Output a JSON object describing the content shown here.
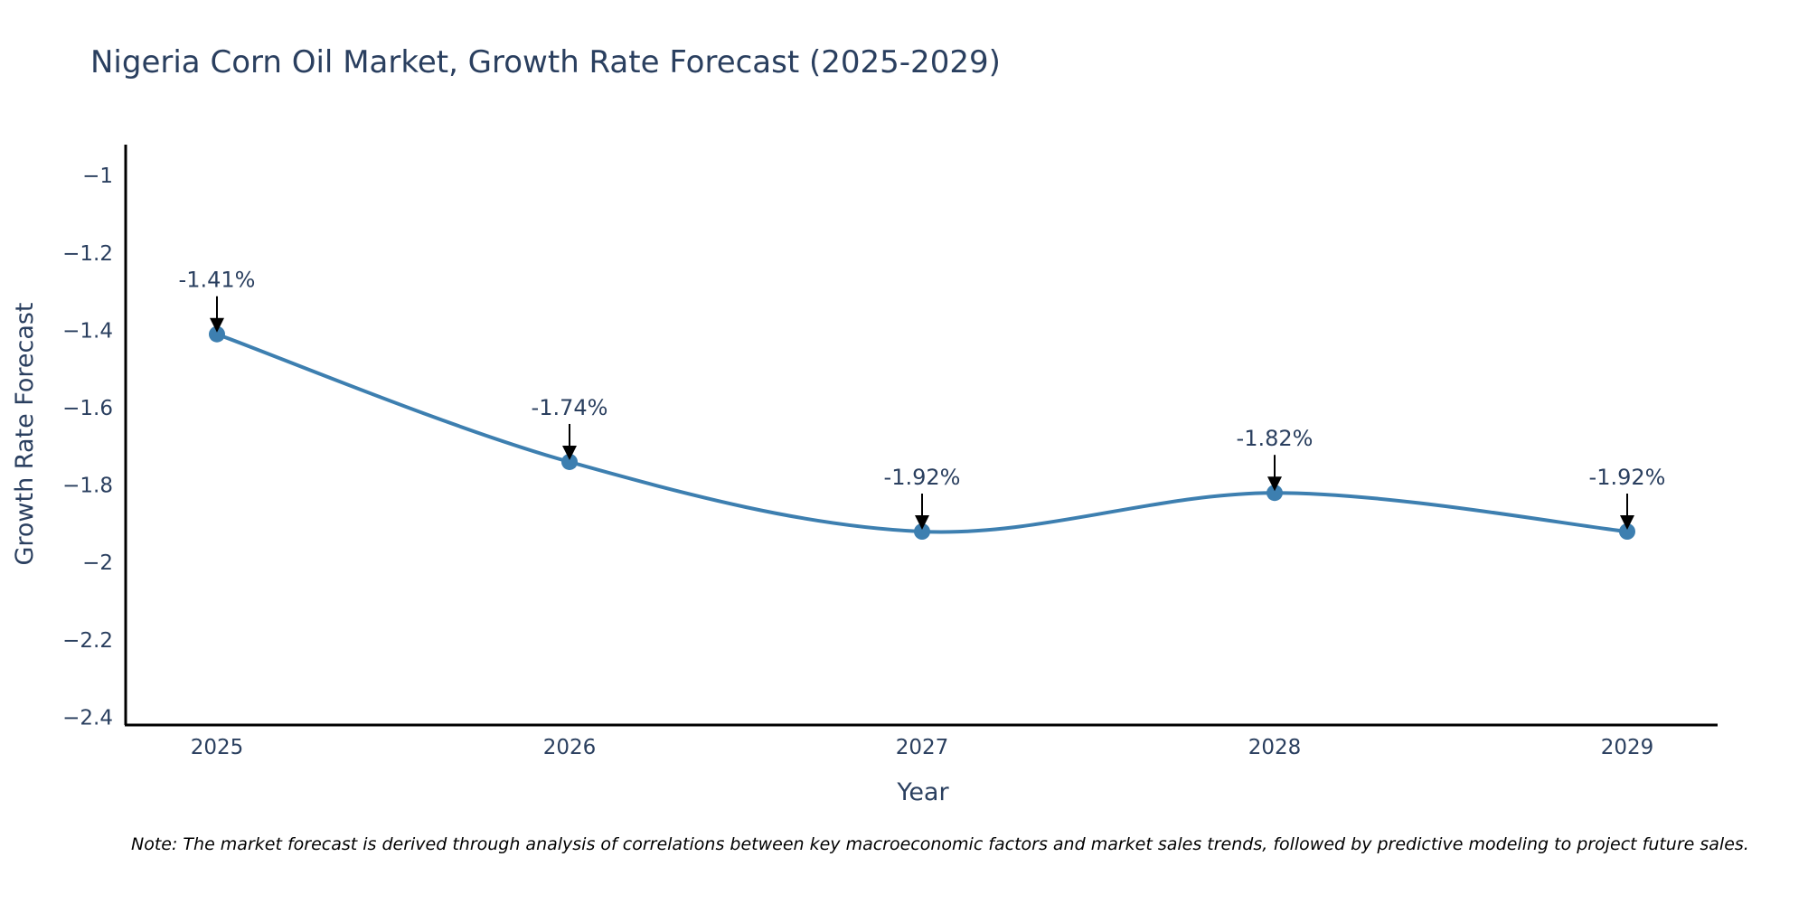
{
  "chart_data": {
    "type": "line",
    "title": "Nigeria Corn Oil Market, Growth Rate Forecast (2025-2029)",
    "xlabel": "Year",
    "ylabel": "Growth Rate Forecast",
    "categories": [
      "2025",
      "2026",
      "2027",
      "2028",
      "2029"
    ],
    "series": [
      {
        "name": "Growth Rate Forecast",
        "values": [
          -1.41,
          -1.74,
          -1.92,
          -1.82,
          -1.92
        ],
        "labels": [
          "-1.41%",
          "-1.74%",
          "-1.92%",
          "-1.82%",
          "-1.92%"
        ],
        "color": "#3d7fb0"
      }
    ],
    "ylim": [
      -2.42,
      -0.92
    ],
    "yticks": [
      -1,
      -1.2,
      -1.4,
      -1.6,
      -1.8,
      -2,
      -2.2,
      -2.4
    ],
    "ytick_labels": [
      "−1",
      "−1.2",
      "−1.4",
      "−1.6",
      "−1.8",
      "−2",
      "−2.2",
      "−2.4"
    ],
    "grid": false,
    "legend": "none"
  },
  "note": "Note: The market forecast is derived through analysis of correlations between key macroeconomic factors and market sales trends, followed by predictive modeling to project future sales."
}
